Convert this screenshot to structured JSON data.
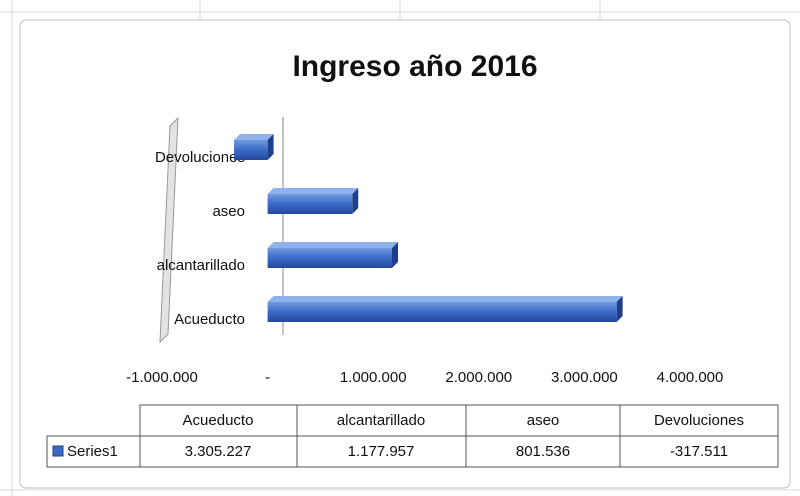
{
  "chart_data": {
    "type": "bar",
    "orientation": "horizontal",
    "title": "Ingreso año 2016",
    "categories": [
      "Acueducto",
      "alcantarillado",
      "aseo",
      "Devoluciones"
    ],
    "series": [
      {
        "name": "Series1",
        "color": "#3a6bc8",
        "values": [
          3305227,
          1177957,
          801536,
          -317511
        ],
        "value_labels": [
          "3.305.227",
          "1.177.957",
          "801.536",
          "-317.511"
        ]
      }
    ],
    "xlim": [
      -1000000,
      4000000
    ],
    "xticks": [
      {
        "value": -1000000,
        "label": "-1.000.000"
      },
      {
        "value": 0,
        "label": "-"
      },
      {
        "value": 1000000,
        "label": "1.000.000"
      },
      {
        "value": 2000000,
        "label": "2.000.000"
      },
      {
        "value": 3000000,
        "label": "3.000.000"
      },
      {
        "value": 4000000,
        "label": "4.000.000"
      }
    ],
    "grid": false,
    "data_table": true
  }
}
